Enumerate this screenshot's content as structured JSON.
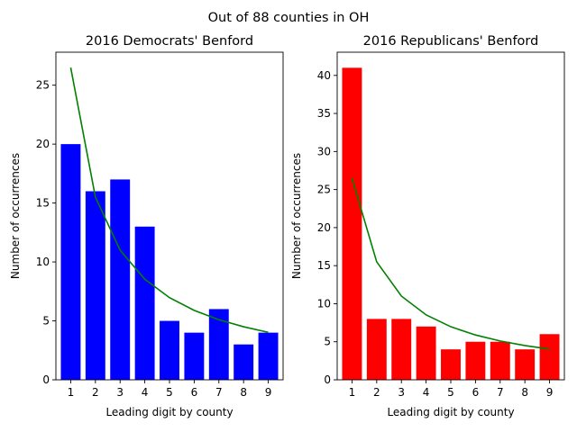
{
  "suptitle": "Out of 88 counties in OH",
  "colors": {
    "benford_line": "#008000",
    "axis": "#000000",
    "background": "#ffffff"
  },
  "chart_data": [
    {
      "type": "bar",
      "title": "2016 Democrats' Benford",
      "xlabel": "Leading digit by county",
      "ylabel": "Number of occurrences",
      "categories": [
        "1",
        "2",
        "3",
        "4",
        "5",
        "6",
        "7",
        "8",
        "9"
      ],
      "values": [
        20,
        16,
        17,
        13,
        5,
        4,
        6,
        3,
        4
      ],
      "bar_color": "#0000ff",
      "benford_expected": [
        26.49,
        15.5,
        11.0,
        8.53,
        6.97,
        5.89,
        5.1,
        4.5,
        4.03
      ],
      "ylim": [
        0,
        27.8
      ],
      "yticks": [
        0,
        5,
        10,
        15,
        20,
        25
      ]
    },
    {
      "type": "bar",
      "title": "2016 Republicans' Benford",
      "xlabel": "Leading digit by county",
      "ylabel": "Number of occurrences",
      "categories": [
        "1",
        "2",
        "3",
        "4",
        "5",
        "6",
        "7",
        "8",
        "9"
      ],
      "values": [
        41,
        8,
        8,
        7,
        4,
        5,
        5,
        4,
        6
      ],
      "bar_color": "#ff0000",
      "benford_expected": [
        26.49,
        15.5,
        11.0,
        8.53,
        6.97,
        5.89,
        5.1,
        4.5,
        4.03
      ],
      "ylim": [
        0,
        43.05
      ],
      "yticks": [
        0,
        5,
        10,
        15,
        20,
        25,
        30,
        35,
        40
      ]
    }
  ]
}
